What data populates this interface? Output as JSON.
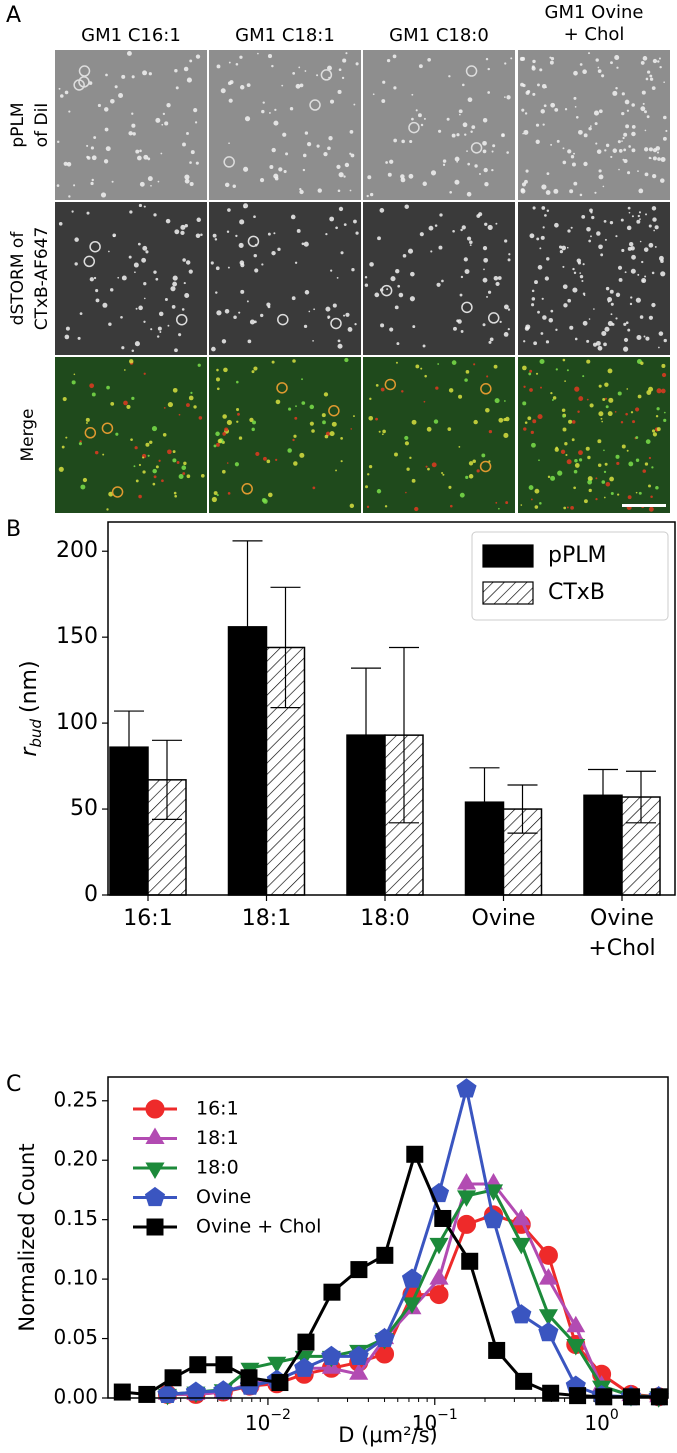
{
  "panel_a": {
    "label": "A",
    "columns": [
      [
        "GM1 C16:1"
      ],
      [
        "GM1 C18:1"
      ],
      [
        "GM1 C18:0"
      ],
      [
        "GM1 Ovine",
        "+ Chol"
      ]
    ],
    "rows": [
      [
        "pPLM",
        "of DiI"
      ],
      [
        "dSTORM of",
        "CTxB-AF647"
      ],
      [
        "Merge"
      ]
    ]
  },
  "chart_data": [
    {
      "type": "bar",
      "label": "B",
      "ylabel": {
        "symbol": "r",
        "subscript": "bud",
        "unit": "(nm)"
      },
      "categories": [
        [
          "16:1"
        ],
        [
          "18:1"
        ],
        [
          "18:0"
        ],
        [
          "Ovine"
        ],
        [
          "Ovine",
          "+Chol"
        ]
      ],
      "series": [
        {
          "name": "pPLM",
          "color": "#000000",
          "values": [
            86,
            156,
            93,
            54,
            58
          ],
          "errors": [
            21,
            50,
            39,
            20,
            15
          ]
        },
        {
          "name": "CTxB",
          "color": "#ffffff",
          "hatch": true,
          "values": [
            67,
            144,
            93,
            50,
            57
          ],
          "errors": [
            23,
            35,
            51,
            14,
            15
          ]
        }
      ],
      "ylim": [
        0,
        217
      ],
      "yticks": [
        0,
        50,
        100,
        150,
        200
      ],
      "legend": "upper right"
    },
    {
      "type": "line",
      "label": "C",
      "xlog": true,
      "ylabel": "Normalized Count",
      "xlabel": "D (μm²/s)",
      "xlim": [
        0.0011,
        2.5
      ],
      "ylim": [
        0,
        0.27
      ],
      "xticks": [
        {
          "value": 0.01,
          "label": "10",
          "exponent": "−2"
        },
        {
          "value": 0.1,
          "label": "10",
          "exponent": "−1"
        },
        {
          "value": 1,
          "label": "10",
          "exponent": "0"
        }
      ],
      "yticks": [
        {
          "value": 0,
          "label": "0.00"
        },
        {
          "value": 0.05,
          "label": "0.05"
        },
        {
          "value": 0.1,
          "label": "0.10"
        },
        {
          "value": 0.15,
          "label": "0.15"
        },
        {
          "value": 0.2,
          "label": "0.20"
        },
        {
          "value": 0.25,
          "label": "0.25"
        }
      ],
      "legend": "upper left",
      "series": [
        {
          "name": "16:1",
          "color": "#ee2a2a",
          "marker": "circle",
          "x": [
            0.0025,
            0.0037,
            0.0054,
            0.0078,
            0.0113,
            0.0165,
            0.024,
            0.035,
            0.05,
            0.073,
            0.106,
            0.155,
            0.225,
            0.33,
            0.48,
            0.7,
            1.0,
            1.5,
            2.2
          ],
          "values": [
            0.003,
            0.003,
            0.005,
            0.01,
            0.012,
            0.02,
            0.025,
            0.03,
            0.037,
            0.087,
            0.087,
            0.146,
            0.154,
            0.146,
            0.12,
            0.045,
            0.02,
            0.003,
            0.001
          ]
        },
        {
          "name": "18:1",
          "color": "#b24bb2",
          "marker": "triangle-up",
          "x": [
            0.0025,
            0.0037,
            0.0054,
            0.0078,
            0.0113,
            0.0165,
            0.024,
            0.035,
            0.05,
            0.073,
            0.106,
            0.155,
            0.225,
            0.33,
            0.48,
            0.7,
            1.0,
            1.5,
            2.2
          ],
          "values": [
            0.003,
            0.003,
            0.005,
            0.012,
            0.015,
            0.025,
            0.025,
            0.02,
            0.05,
            0.075,
            0.1,
            0.18,
            0.18,
            0.15,
            0.1,
            0.06,
            0.01,
            0.002,
            0.001
          ]
        },
        {
          "name": "18:0",
          "color": "#1c8a3a",
          "marker": "triangle-down",
          "x": [
            0.0025,
            0.0037,
            0.0054,
            0.0078,
            0.0113,
            0.0165,
            0.024,
            0.035,
            0.05,
            0.073,
            0.106,
            0.155,
            0.225,
            0.33,
            0.48,
            0.7,
            1.0,
            1.5,
            2.2
          ],
          "values": [
            0.003,
            0.005,
            0.007,
            0.025,
            0.03,
            0.035,
            0.035,
            0.04,
            0.05,
            0.08,
            0.13,
            0.17,
            0.175,
            0.13,
            0.07,
            0.045,
            0.01,
            0.002,
            0.001
          ]
        },
        {
          "name": "Ovine",
          "color": "#3a55c0",
          "marker": "pentagon",
          "x": [
            0.0025,
            0.0037,
            0.0054,
            0.0078,
            0.0113,
            0.0165,
            0.024,
            0.035,
            0.05,
            0.073,
            0.106,
            0.155,
            0.225,
            0.33,
            0.48,
            0.7,
            1.0,
            1.5,
            2.2
          ],
          "values": [
            0.003,
            0.005,
            0.006,
            0.01,
            0.015,
            0.025,
            0.035,
            0.035,
            0.05,
            0.1,
            0.172,
            0.26,
            0.15,
            0.07,
            0.055,
            0.01,
            0.002,
            0.001,
            0.001
          ]
        },
        {
          "name": "Ovine + Chol",
          "color": "#000000",
          "marker": "square",
          "x": [
            0.00134,
            0.00188,
            0.0027,
            0.0038,
            0.00545,
            0.0077,
            0.0118,
            0.0169,
            0.0242,
            0.0351,
            0.0502,
            0.0759,
            0.1117,
            0.162,
            0.235,
            0.341,
            0.495,
            0.718,
            1.03,
            1.51,
            2.22
          ],
          "values": [
            0.005,
            0.003,
            0.017,
            0.028,
            0.028,
            0.017,
            0.013,
            0.047,
            0.089,
            0.108,
            0.12,
            0.205,
            0.151,
            0.115,
            0.04,
            0.014,
            0.004,
            0.002,
            0.001,
            0.001,
            0.001
          ]
        }
      ]
    }
  ]
}
